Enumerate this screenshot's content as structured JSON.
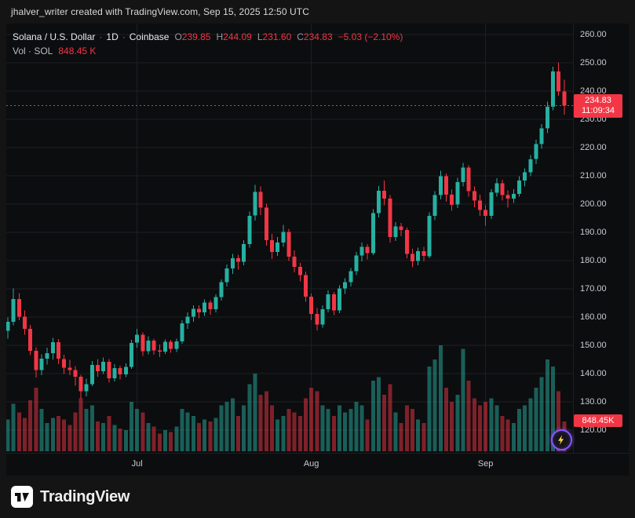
{
  "header": {
    "attribution": "jhalver_writer created with TradingView.com, Sep 15, 2025 12:50 UTC"
  },
  "legend": {
    "symbol_title": "Solana / U.S. Dollar",
    "separator": "·",
    "interval": "1D",
    "exchange": "Coinbase",
    "ohlc": {
      "open_label": "O",
      "open": "239.85",
      "high_label": "H",
      "high": "244.09",
      "low_label": "L",
      "low": "231.60",
      "close_label": "C",
      "close": "234.83",
      "change": "−5.03 (−2.10%)"
    },
    "volume_label": "Vol · SOL",
    "volume_value": "848.45 K"
  },
  "badges": {
    "last_price": "234.83",
    "countdown": "11:09:34",
    "volume": "848.45K"
  },
  "price_axis": {
    "ticks": [
      "260.00",
      "250.00",
      "240.00",
      "230.00",
      "220.00",
      "210.00",
      "200.00",
      "190.00",
      "180.00",
      "170.00",
      "160.00",
      "150.00",
      "140.00",
      "130.00",
      "120.00"
    ]
  },
  "time_axis": {
    "ticks": [
      {
        "label": "Jul",
        "index": 23
      },
      {
        "label": "Aug",
        "index": 54
      },
      {
        "label": "Sep",
        "index": 85
      }
    ]
  },
  "footer": {
    "brand": "TradingView"
  },
  "colors": {
    "up": "#26b0a1",
    "down": "#f23645",
    "grid": "#1d1f23",
    "axis_text": "#c9cbd1",
    "badge_bg": "#f23645"
  },
  "chart_data": {
    "type": "candlestick",
    "title": "Solana / U.S. Dollar · 1D · Coinbase",
    "symbol": "SOL/USD",
    "interval": "1D",
    "exchange": "Coinbase",
    "last_price": 234.83,
    "last_ohlc": {
      "open": 239.85,
      "high": 244.09,
      "low": 231.6,
      "close": 234.83,
      "change": -5.03,
      "change_pct": -2.1
    },
    "last_volume_k": 848.45,
    "price_axis_range": [
      120,
      260
    ],
    "grid": true,
    "start_date": "2025-06-08",
    "interval_days": 1,
    "volume_axis": {
      "unit": "K SOL",
      "max_k": 3000
    },
    "columns": [
      "open",
      "high",
      "low",
      "close",
      "volume_k"
    ],
    "candles": [
      [
        155.2,
        159.8,
        152.4,
        158.3,
        900
      ],
      [
        158.3,
        170.2,
        157.1,
        166.4,
        1350
      ],
      [
        166.4,
        168.5,
        158.9,
        160.2,
        1100
      ],
      [
        160.2,
        162.3,
        153.8,
        155.9,
        950
      ],
      [
        155.9,
        157.2,
        146.5,
        148.1,
        1450
      ],
      [
        148.1,
        149.3,
        138.6,
        141.2,
        1800
      ],
      [
        141.2,
        146.8,
        139.4,
        145.3,
        1200
      ],
      [
        145.3,
        149.1,
        143.2,
        147.2,
        800
      ],
      [
        147.2,
        152.6,
        145.0,
        151.1,
        950
      ],
      [
        151.1,
        152.2,
        143.4,
        145.2,
        1000
      ],
      [
        145.2,
        146.6,
        139.8,
        142.1,
        900
      ],
      [
        142.1,
        144.9,
        139.5,
        141.3,
        750
      ],
      [
        141.3,
        142.7,
        135.7,
        138.9,
        1100
      ],
      [
        138.9,
        139.6,
        131.1,
        133.8,
        1500
      ],
      [
        133.8,
        138.2,
        131.9,
        136.3,
        1200
      ],
      [
        136.3,
        144.5,
        135.6,
        143.1,
        1300
      ],
      [
        143.1,
        145.2,
        138.9,
        140.8,
        850
      ],
      [
        140.8,
        145.7,
        139.9,
        144.2,
        800
      ],
      [
        144.2,
        145.1,
        136.8,
        138.3,
        1000
      ],
      [
        138.3,
        143.4,
        137.2,
        141.9,
        750
      ],
      [
        141.9,
        142.8,
        137.9,
        139.7,
        650
      ],
      [
        139.7,
        143.6,
        138.8,
        142.4,
        600
      ],
      [
        142.4,
        151.9,
        141.7,
        150.9,
        1400
      ],
      [
        150.9,
        155.8,
        149.2,
        153.8,
        1200
      ],
      [
        153.8,
        154.6,
        146.2,
        147.9,
        1100
      ],
      [
        147.9,
        153.2,
        146.8,
        151.7,
        800
      ],
      [
        151.7,
        152.4,
        146.6,
        148.2,
        700
      ],
      [
        148.2,
        150.3,
        145.9,
        147.8,
        500
      ],
      [
        147.8,
        152.1,
        146.9,
        151.2,
        600
      ],
      [
        151.2,
        152.0,
        147.3,
        148.8,
        550
      ],
      [
        148.8,
        152.3,
        147.6,
        151.4,
        700
      ],
      [
        151.4,
        158.9,
        150.6,
        157.8,
        1200
      ],
      [
        157.8,
        161.7,
        155.9,
        160.1,
        1100
      ],
      [
        160.1,
        164.2,
        158.3,
        162.9,
        1000
      ],
      [
        162.9,
        164.1,
        159.6,
        161.7,
        800
      ],
      [
        161.7,
        166.3,
        160.4,
        165.2,
        900
      ],
      [
        165.2,
        166.0,
        160.9,
        162.8,
        850
      ],
      [
        162.8,
        168.1,
        161.7,
        167.1,
        950
      ],
      [
        167.1,
        173.4,
        165.8,
        172.3,
        1300
      ],
      [
        172.3,
        178.6,
        170.9,
        177.2,
        1400
      ],
      [
        177.2,
        182.4,
        175.3,
        180.9,
        1500
      ],
      [
        180.9,
        182.1,
        176.8,
        179.6,
        1000
      ],
      [
        179.6,
        187.2,
        178.4,
        185.8,
        1300
      ],
      [
        185.8,
        197.3,
        184.6,
        195.9,
        1900
      ],
      [
        195.9,
        206.8,
        194.2,
        204.3,
        2200
      ],
      [
        204.3,
        206.2,
        196.1,
        198.7,
        1600
      ],
      [
        198.7,
        200.1,
        185.3,
        187.2,
        1700
      ],
      [
        187.2,
        189.4,
        180.6,
        183.1,
        1300
      ],
      [
        183.1,
        188.3,
        181.7,
        186.4,
        900
      ],
      [
        186.4,
        192.6,
        184.8,
        190.2,
        1000
      ],
      [
        190.2,
        191.3,
        179.8,
        181.4,
        1200
      ],
      [
        181.4,
        183.6,
        175.9,
        177.8,
        1100
      ],
      [
        177.8,
        179.2,
        172.6,
        174.9,
        1000
      ],
      [
        174.9,
        176.1,
        165.4,
        167.2,
        1500
      ],
      [
        167.2,
        168.3,
        158.9,
        161.1,
        1800
      ],
      [
        161.1,
        163.2,
        155.3,
        157.4,
        1700
      ],
      [
        157.4,
        164.1,
        156.2,
        162.8,
        1300
      ],
      [
        162.8,
        169.4,
        161.6,
        168.1,
        1200
      ],
      [
        168.1,
        168.9,
        160.7,
        162.3,
        1000
      ],
      [
        162.3,
        171.2,
        161.4,
        170.1,
        1300
      ],
      [
        170.1,
        173.8,
        168.2,
        172.4,
        1100
      ],
      [
        172.4,
        177.3,
        170.8,
        176.2,
        1200
      ],
      [
        176.2,
        183.1,
        174.9,
        181.8,
        1400
      ],
      [
        181.8,
        186.4,
        179.7,
        184.9,
        1300
      ],
      [
        184.9,
        185.8,
        180.4,
        182.6,
        900
      ],
      [
        182.6,
        198.2,
        181.9,
        196.8,
        2000
      ],
      [
        196.8,
        206.4,
        195.3,
        204.7,
        2100
      ],
      [
        204.7,
        208.3,
        199.6,
        201.9,
        1600
      ],
      [
        201.9,
        203.2,
        186.4,
        188.3,
        1900
      ],
      [
        188.3,
        193.6,
        186.9,
        192.1,
        1100
      ],
      [
        192.1,
        193.4,
        188.6,
        190.8,
        800
      ],
      [
        190.8,
        191.7,
        180.9,
        182.4,
        1300
      ],
      [
        182.4,
        184.2,
        177.6,
        179.8,
        1200
      ],
      [
        179.8,
        184.6,
        178.4,
        183.3,
        900
      ],
      [
        183.3,
        184.9,
        179.7,
        181.6,
        800
      ],
      [
        181.6,
        197.1,
        180.8,
        195.9,
        2400
      ],
      [
        195.9,
        204.6,
        194.3,
        203.2,
        2600
      ],
      [
        203.2,
        211.8,
        201.7,
        209.9,
        3000
      ],
      [
        209.9,
        210.8,
        200.9,
        203.4,
        1800
      ],
      [
        203.4,
        205.2,
        197.6,
        199.8,
        1400
      ],
      [
        199.8,
        209.3,
        198.6,
        207.8,
        1600
      ],
      [
        207.8,
        214.6,
        206.2,
        212.9,
        2900
      ],
      [
        212.9,
        213.8,
        202.7,
        204.6,
        2000
      ],
      [
        204.6,
        206.3,
        198.9,
        201.2,
        1500
      ],
      [
        201.2,
        203.4,
        195.8,
        197.9,
        1300
      ],
      [
        197.9,
        199.6,
        192.3,
        195.8,
        1400
      ],
      [
        195.8,
        205.3,
        194.7,
        204.1,
        1500
      ],
      [
        204.1,
        209.2,
        202.6,
        207.4,
        1300
      ],
      [
        207.4,
        208.6,
        201.3,
        203.2,
        1000
      ],
      [
        203.2,
        204.8,
        198.7,
        201.9,
        900
      ],
      [
        201.9,
        205.3,
        200.4,
        203.6,
        800
      ],
      [
        203.6,
        209.8,
        202.7,
        208.4,
        1200
      ],
      [
        208.4,
        212.6,
        206.3,
        211.2,
        1300
      ],
      [
        211.2,
        217.4,
        209.8,
        215.9,
        1500
      ],
      [
        215.9,
        222.8,
        214.2,
        221.3,
        1800
      ],
      [
        221.3,
        228.4,
        219.6,
        226.8,
        2100
      ],
      [
        226.8,
        236.2,
        225.1,
        234.4,
        2600
      ],
      [
        234.4,
        248.6,
        233.2,
        246.9,
        2400
      ],
      [
        246.9,
        250.1,
        238.4,
        239.85,
        1700
      ],
      [
        239.85,
        244.09,
        231.6,
        234.83,
        848.45
      ]
    ]
  }
}
